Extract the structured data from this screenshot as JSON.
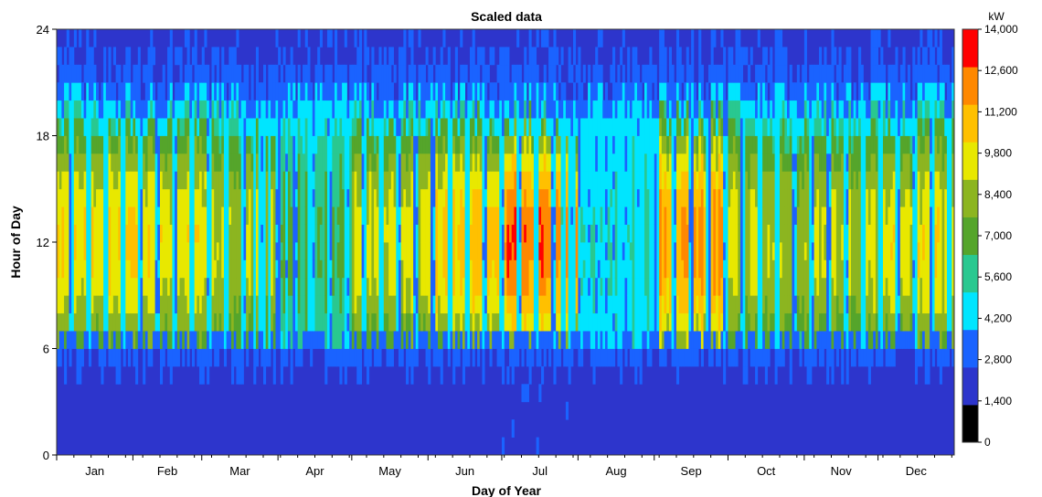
{
  "chart_data": {
    "type": "heatmap",
    "title": "Scaled data",
    "xlabel": "Day of Year",
    "ylabel": "Hour of Day",
    "x_range": [
      1,
      365
    ],
    "y_range": [
      0,
      24
    ],
    "y_ticks": [
      "0",
      "6",
      "12",
      "18",
      "24"
    ],
    "y_tick_values": [
      0,
      6,
      12,
      18,
      24
    ],
    "months": [
      "Jan",
      "Feb",
      "Mar",
      "Apr",
      "May",
      "Jun",
      "Jul",
      "Aug",
      "Sep",
      "Oct",
      "Nov",
      "Dec"
    ],
    "month_days": [
      31,
      28,
      31,
      30,
      31,
      30,
      31,
      31,
      30,
      31,
      30,
      31
    ],
    "colorbar": {
      "unit": "kW",
      "min": 0,
      "max": 14000,
      "labels": [
        "0",
        "1,400",
        "2,800",
        "4,200",
        "5,600",
        "7,000",
        "8,400",
        "9,800",
        "11,200",
        "12,600",
        "14,000"
      ],
      "colors": [
        "#000000",
        "#2d35cc",
        "#1a63ff",
        "#00e5ff",
        "#29c890",
        "#55a52b",
        "#8cb520",
        "#e8e800",
        "#ffc000",
        "#ff8800",
        "#ff0000"
      ]
    },
    "description_levels_kW": {
      "night_baseline": 1400,
      "weekday_morning_evening": 4200,
      "winter_midday_peak": 9800,
      "summer_midday_peak": 12600
    }
  }
}
